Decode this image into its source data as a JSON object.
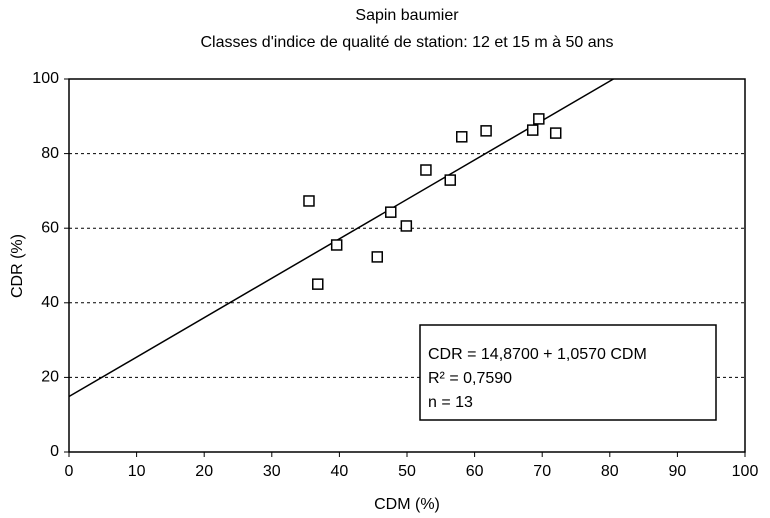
{
  "chart_data": {
    "type": "scatter",
    "title": "Sapin baumier",
    "subtitle": "Classes d'indice de qualité de station: 12 et 15 m à 50 ans",
    "xlabel": "CDM (%)",
    "ylabel": "CDR (%)",
    "x": [
      35.5,
      36.8,
      39.6,
      45.6,
      47.6,
      49.9,
      52.8,
      56.4,
      58.1,
      61.7,
      68.6,
      69.5,
      72.0
    ],
    "values": [
      67.3,
      45.0,
      55.5,
      52.3,
      64.3,
      60.6,
      75.6,
      72.9,
      84.5,
      86.1,
      86.3,
      89.3,
      85.5
    ],
    "color": "#000000",
    "fit": {
      "intercept": 14.87,
      "slope": 1.057
    },
    "annotations": [
      "CDR = 14,8700 + 1,0570 CDM",
      "R² = 0,7590",
      "n = 13"
    ],
    "xlim": [
      0,
      100
    ],
    "xticks": [
      0,
      10,
      20,
      30,
      40,
      50,
      60,
      70,
      80,
      90,
      100
    ],
    "ylim": [
      0,
      100
    ],
    "yticks": [
      0,
      20,
      40,
      60,
      80,
      100
    ],
    "grid": true
  }
}
